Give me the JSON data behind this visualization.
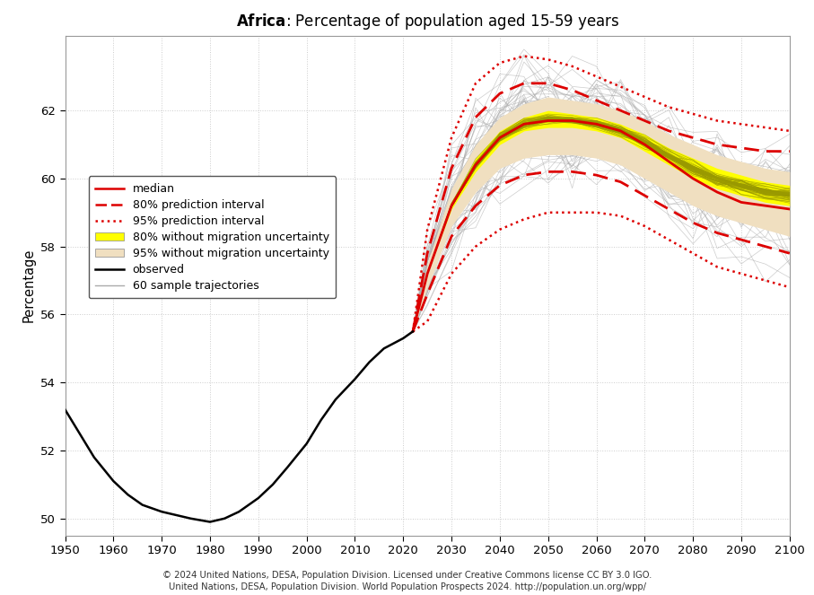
{
  "title_bold": "Africa",
  "title_rest": ": Percentage of population aged 15-59 years",
  "ylabel": "Percentage",
  "xlim": [
    1950,
    2100
  ],
  "ylim": [
    49.5,
    64.2
  ],
  "yticks": [
    50,
    52,
    54,
    56,
    58,
    60,
    62
  ],
  "xticks": [
    1950,
    1960,
    1970,
    1980,
    1990,
    2000,
    2010,
    2020,
    2030,
    2040,
    2050,
    2060,
    2070,
    2080,
    2090,
    2100
  ],
  "observed_x": [
    1950,
    1953,
    1956,
    1960,
    1963,
    1966,
    1970,
    1973,
    1976,
    1980,
    1983,
    1986,
    1990,
    1993,
    1996,
    2000,
    2003,
    2006,
    2010,
    2013,
    2016,
    2020,
    2022
  ],
  "observed_y": [
    53.2,
    52.5,
    51.8,
    51.1,
    50.7,
    50.4,
    50.2,
    50.1,
    50.0,
    49.9,
    50.0,
    50.2,
    50.6,
    51.0,
    51.5,
    52.2,
    52.9,
    53.5,
    54.1,
    54.6,
    55.0,
    55.3,
    55.5
  ],
  "forecast_x": [
    2022,
    2025,
    2030,
    2035,
    2040,
    2045,
    2050,
    2055,
    2060,
    2065,
    2070,
    2075,
    2080,
    2085,
    2090,
    2095,
    2100
  ],
  "median_y": [
    55.5,
    57.2,
    59.2,
    60.4,
    61.2,
    61.6,
    61.7,
    61.7,
    61.6,
    61.4,
    61.0,
    60.5,
    60.0,
    59.6,
    59.3,
    59.2,
    59.1
  ],
  "pi80_upper": [
    55.5,
    57.8,
    60.3,
    61.8,
    62.5,
    62.8,
    62.8,
    62.6,
    62.3,
    62.0,
    61.7,
    61.4,
    61.2,
    61.0,
    60.9,
    60.8,
    60.8
  ],
  "pi80_lower": [
    55.5,
    56.6,
    58.3,
    59.2,
    59.8,
    60.1,
    60.2,
    60.2,
    60.1,
    59.9,
    59.5,
    59.1,
    58.7,
    58.4,
    58.2,
    58.0,
    57.8
  ],
  "pi95_upper": [
    55.5,
    58.5,
    61.2,
    62.8,
    63.4,
    63.6,
    63.5,
    63.3,
    63.0,
    62.7,
    62.4,
    62.1,
    61.9,
    61.7,
    61.6,
    61.5,
    61.4
  ],
  "pi95_lower": [
    55.5,
    55.8,
    57.2,
    58.0,
    58.5,
    58.8,
    59.0,
    59.0,
    59.0,
    58.9,
    58.6,
    58.2,
    57.8,
    57.4,
    57.2,
    57.0,
    56.8
  ],
  "no_mig95_upper": [
    55.5,
    57.5,
    59.7,
    61.0,
    61.8,
    62.2,
    62.4,
    62.3,
    62.2,
    62.0,
    61.7,
    61.3,
    61.0,
    60.7,
    60.5,
    60.3,
    60.2
  ],
  "no_mig95_lower": [
    55.5,
    56.8,
    58.6,
    59.6,
    60.3,
    60.6,
    60.7,
    60.7,
    60.6,
    60.4,
    60.0,
    59.6,
    59.2,
    58.9,
    58.7,
    58.5,
    58.3
  ],
  "no_mig80_upper": [
    55.5,
    57.2,
    59.3,
    60.6,
    61.4,
    61.8,
    62.0,
    61.9,
    61.8,
    61.6,
    61.3,
    60.9,
    60.6,
    60.3,
    60.1,
    59.9,
    59.8
  ],
  "no_mig80_lower": [
    55.5,
    57.2,
    59.1,
    60.2,
    61.0,
    61.4,
    61.5,
    61.5,
    61.4,
    61.2,
    60.8,
    60.4,
    60.0,
    59.7,
    59.5,
    59.3,
    59.2
  ],
  "color_median": "#dd0000",
  "color_pi80": "#dd0000",
  "color_pi95": "#dd0000",
  "color_no_mig80": "#ffff00",
  "color_no_mig95": "#f0dfc0",
  "color_observed": "#000000",
  "color_sample_gray": "#aaaaaa",
  "color_sample_yellow": "#aaaa00",
  "color_grid": "#cccccc",
  "background_color": "#ffffff",
  "footer_line1": "© 2024 United Nations, DESA, Population Division. Licensed under Creative Commons license CC BY 3.0 IGO.",
  "footer_line2_normal": "United Nations, DESA, Population Division. ",
  "footer_line2_italic": "World Population Prospects 2024",
  "footer_line2_end": ". http://population.un.org/wpp/"
}
